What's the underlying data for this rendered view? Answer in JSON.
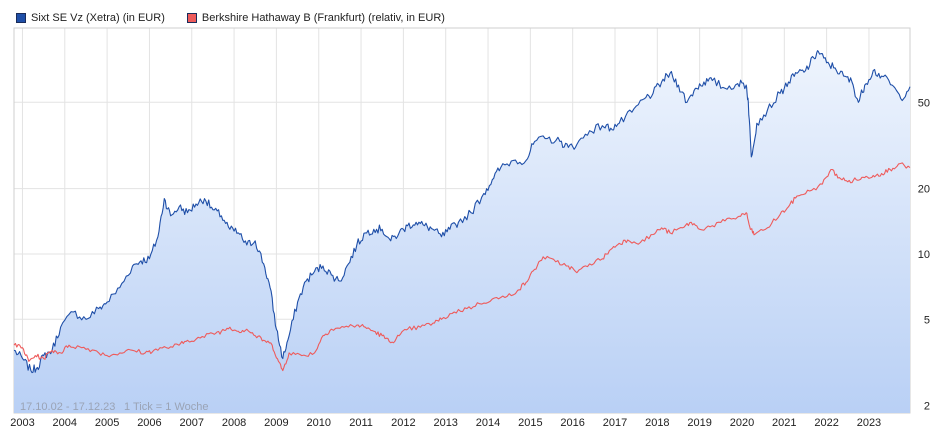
{
  "legend": [
    {
      "label": "Sixt SE Vz (Xetra) (in EUR)",
      "color": "#1f4fa8"
    },
    {
      "label": "Berkshire Hathaway B (Frankfurt) (relativ, in EUR)",
      "color": "#ee5b5b"
    }
  ],
  "info": {
    "range": "17.10.02 - 17.12.23",
    "tick": "1 Tick = 1 Woche"
  },
  "chart_data": {
    "type": "line",
    "title": "",
    "y_scale": "log",
    "ylim": [
      1.85,
      110
    ],
    "xlim": [
      2002.8,
      2023.97
    ],
    "x_ticks": [
      2003,
      2004,
      2005,
      2006,
      2007,
      2008,
      2009,
      2010,
      2011,
      2012,
      2013,
      2014,
      2015,
      2016,
      2017,
      2018,
      2019,
      2020,
      2021,
      2022,
      2023
    ],
    "x_tick_labels": [
      "2003",
      "2004",
      "2005",
      "2006",
      "2007",
      "2008",
      "2009",
      "2010",
      "2011",
      "2012",
      "2013",
      "2014",
      "2015",
      "2016",
      "2017",
      "2018",
      "2019",
      "2020",
      "2021",
      "2022",
      "2023"
    ],
    "y_ticks": [
      2,
      5,
      10,
      20,
      50
    ],
    "y_tick_labels": [
      "2",
      "5",
      "10",
      "20",
      "50"
    ],
    "series": [
      {
        "name": "Sixt SE Vz (Xetra) (in EUR)",
        "color": "#1f4fa8",
        "fill": true,
        "points": [
          [
            2002.8,
            3.6
          ],
          [
            2003.0,
            3.3
          ],
          [
            2003.2,
            2.9
          ],
          [
            2003.35,
            3.0
          ],
          [
            2003.5,
            3.4
          ],
          [
            2003.7,
            3.6
          ],
          [
            2003.9,
            4.6
          ],
          [
            2004.2,
            5.4
          ],
          [
            2004.5,
            5.0
          ],
          [
            2004.8,
            5.6
          ],
          [
            2005.0,
            6.0
          ],
          [
            2005.3,
            7.0
          ],
          [
            2005.6,
            8.8
          ],
          [
            2005.8,
            9.3
          ],
          [
            2006.0,
            9.5
          ],
          [
            2006.2,
            12.0
          ],
          [
            2006.35,
            18.0
          ],
          [
            2006.5,
            15.0
          ],
          [
            2006.7,
            16.5
          ],
          [
            2006.9,
            15.5
          ],
          [
            2007.1,
            17.0
          ],
          [
            2007.3,
            18.0
          ],
          [
            2007.5,
            16.0
          ],
          [
            2007.7,
            15.0
          ],
          [
            2007.9,
            13.0
          ],
          [
            2008.1,
            12.5
          ],
          [
            2008.3,
            11.0
          ],
          [
            2008.5,
            11.5
          ],
          [
            2008.7,
            9.0
          ],
          [
            2008.85,
            7.0
          ],
          [
            2009.0,
            4.5
          ],
          [
            2009.15,
            3.3
          ],
          [
            2009.3,
            4.2
          ],
          [
            2009.5,
            6.0
          ],
          [
            2009.7,
            7.5
          ],
          [
            2009.9,
            8.3
          ],
          [
            2010.1,
            8.8
          ],
          [
            2010.3,
            8.0
          ],
          [
            2010.5,
            7.5
          ],
          [
            2010.7,
            9.0
          ],
          [
            2010.9,
            11.0
          ],
          [
            2011.1,
            12.5
          ],
          [
            2011.3,
            13.0
          ],
          [
            2011.5,
            13.0
          ],
          [
            2011.7,
            11.5
          ],
          [
            2011.9,
            12.5
          ],
          [
            2012.1,
            13.5
          ],
          [
            2012.3,
            14.0
          ],
          [
            2012.5,
            13.5
          ],
          [
            2012.7,
            13.0
          ],
          [
            2012.9,
            12.0
          ],
          [
            2013.1,
            13.0
          ],
          [
            2013.3,
            14.0
          ],
          [
            2013.6,
            15.5
          ],
          [
            2013.9,
            19.0
          ],
          [
            2014.1,
            22.0
          ],
          [
            2014.3,
            25.0
          ],
          [
            2014.6,
            27.0
          ],
          [
            2014.9,
            27.0
          ],
          [
            2015.1,
            33.0
          ],
          [
            2015.4,
            34.0
          ],
          [
            2015.7,
            33.0
          ],
          [
            2015.9,
            31.0
          ],
          [
            2016.1,
            32.0
          ],
          [
            2016.4,
            37.0
          ],
          [
            2016.7,
            39.0
          ],
          [
            2016.9,
            38.0
          ],
          [
            2017.1,
            40.0
          ],
          [
            2017.4,
            45.0
          ],
          [
            2017.7,
            52.0
          ],
          [
            2017.9,
            55.0
          ],
          [
            2018.1,
            62.0
          ],
          [
            2018.3,
            68.0
          ],
          [
            2018.5,
            60.0
          ],
          [
            2018.7,
            50.0
          ],
          [
            2018.9,
            58.0
          ],
          [
            2019.1,
            62.0
          ],
          [
            2019.3,
            63.0
          ],
          [
            2019.6,
            58.0
          ],
          [
            2019.9,
            61.0
          ],
          [
            2020.1,
            60.0
          ],
          [
            2020.15,
            50.0
          ],
          [
            2020.22,
            28.0
          ],
          [
            2020.35,
            40.0
          ],
          [
            2020.6,
            46.0
          ],
          [
            2020.9,
            55.0
          ],
          [
            2021.1,
            62.0
          ],
          [
            2021.3,
            68.0
          ],
          [
            2021.5,
            70.0
          ],
          [
            2021.7,
            80.0
          ],
          [
            2021.8,
            86.0
          ],
          [
            2022.0,
            76.0
          ],
          [
            2022.2,
            72.0
          ],
          [
            2022.4,
            66.0
          ],
          [
            2022.6,
            62.0
          ],
          [
            2022.75,
            50.0
          ],
          [
            2022.9,
            60.0
          ],
          [
            2023.1,
            70.0
          ],
          [
            2023.3,
            66.0
          ],
          [
            2023.55,
            60.0
          ],
          [
            2023.75,
            52.0
          ],
          [
            2023.97,
            59.0
          ]
        ]
      },
      {
        "name": "Berkshire Hathaway B (Frankfurt) (relativ, in EUR)",
        "color": "#ee5b5b",
        "fill": false,
        "points": [
          [
            2002.8,
            3.8
          ],
          [
            2003.0,
            3.7
          ],
          [
            2003.15,
            3.2
          ],
          [
            2003.3,
            3.4
          ],
          [
            2003.5,
            3.3
          ],
          [
            2003.7,
            3.6
          ],
          [
            2003.9,
            3.5
          ],
          [
            2004.1,
            3.8
          ],
          [
            2004.4,
            3.7
          ],
          [
            2004.7,
            3.6
          ],
          [
            2005.0,
            3.4
          ],
          [
            2005.3,
            3.5
          ],
          [
            2005.6,
            3.6
          ],
          [
            2005.9,
            3.5
          ],
          [
            2006.1,
            3.6
          ],
          [
            2006.4,
            3.7
          ],
          [
            2006.7,
            3.8
          ],
          [
            2006.9,
            4.0
          ],
          [
            2007.2,
            4.1
          ],
          [
            2007.5,
            4.3
          ],
          [
            2007.7,
            4.4
          ],
          [
            2007.9,
            4.6
          ],
          [
            2008.1,
            4.4
          ],
          [
            2008.3,
            4.5
          ],
          [
            2008.5,
            4.2
          ],
          [
            2008.7,
            4.0
          ],
          [
            2008.9,
            3.8
          ],
          [
            2009.05,
            3.2
          ],
          [
            2009.15,
            2.9
          ],
          [
            2009.3,
            3.5
          ],
          [
            2009.6,
            3.4
          ],
          [
            2009.9,
            3.5
          ],
          [
            2010.1,
            4.2
          ],
          [
            2010.3,
            4.5
          ],
          [
            2010.6,
            4.6
          ],
          [
            2010.9,
            4.7
          ],
          [
            2011.1,
            4.6
          ],
          [
            2011.3,
            4.4
          ],
          [
            2011.5,
            4.2
          ],
          [
            2011.7,
            3.9
          ],
          [
            2011.9,
            4.2
          ],
          [
            2012.1,
            4.5
          ],
          [
            2012.4,
            4.6
          ],
          [
            2012.7,
            4.8
          ],
          [
            2012.9,
            5.0
          ],
          [
            2013.2,
            5.4
          ],
          [
            2013.5,
            5.6
          ],
          [
            2013.8,
            5.9
          ],
          [
            2014.1,
            6.2
          ],
          [
            2014.4,
            6.3
          ],
          [
            2014.7,
            6.8
          ],
          [
            2014.9,
            7.4
          ],
          [
            2015.1,
            8.5
          ],
          [
            2015.3,
            9.7
          ],
          [
            2015.6,
            9.2
          ],
          [
            2015.9,
            8.8
          ],
          [
            2016.1,
            8.2
          ],
          [
            2016.4,
            9.0
          ],
          [
            2016.7,
            9.5
          ],
          [
            2016.9,
            10.5
          ],
          [
            2017.1,
            11.2
          ],
          [
            2017.3,
            11.6
          ],
          [
            2017.6,
            11.3
          ],
          [
            2017.9,
            12.3
          ],
          [
            2018.1,
            13.2
          ],
          [
            2018.3,
            12.5
          ],
          [
            2018.6,
            13.2
          ],
          [
            2018.8,
            14.0
          ],
          [
            2019.0,
            13.0
          ],
          [
            2019.3,
            13.5
          ],
          [
            2019.6,
            14.2
          ],
          [
            2019.9,
            14.8
          ],
          [
            2020.1,
            15.5
          ],
          [
            2020.2,
            13.0
          ],
          [
            2020.3,
            12.3
          ],
          [
            2020.6,
            13.2
          ],
          [
            2020.9,
            15.2
          ],
          [
            2021.1,
            16.5
          ],
          [
            2021.3,
            18.5
          ],
          [
            2021.6,
            19.5
          ],
          [
            2021.9,
            21.0
          ],
          [
            2022.1,
            24.5
          ],
          [
            2022.3,
            22.5
          ],
          [
            2022.5,
            21.5
          ],
          [
            2022.7,
            22.0
          ],
          [
            2022.9,
            22.5
          ],
          [
            2023.1,
            23.0
          ],
          [
            2023.3,
            23.5
          ],
          [
            2023.5,
            24.5
          ],
          [
            2023.7,
            26.0
          ],
          [
            2023.97,
            25.0
          ]
        ]
      }
    ]
  }
}
